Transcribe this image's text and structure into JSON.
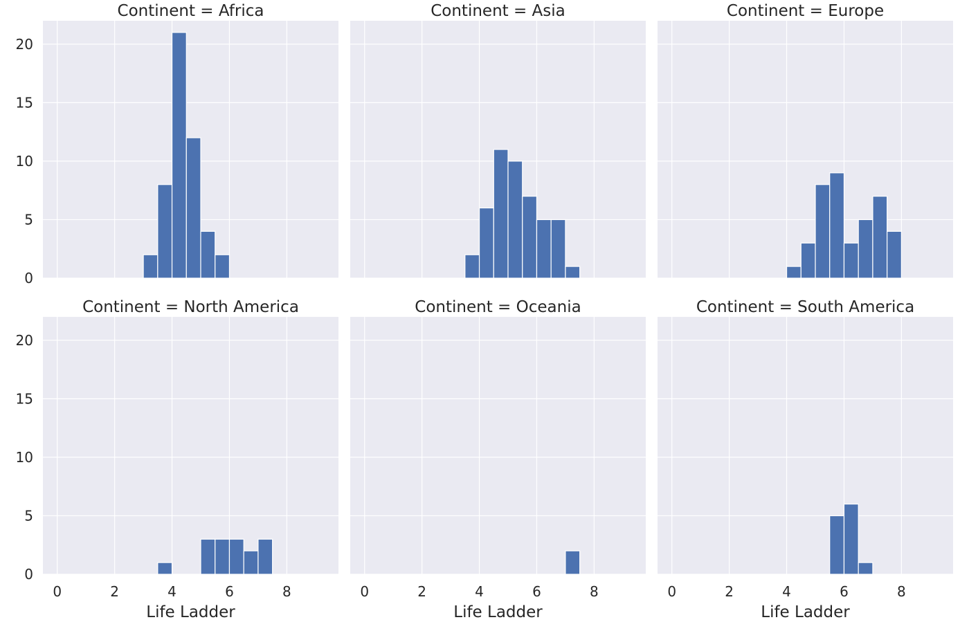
{
  "chart_data": {
    "type": "bar",
    "layout": "facet-grid-2x3",
    "facet_variable": "Continent",
    "xlabel": "Life Ladder",
    "ylabel": "",
    "xlim": [
      -0.5,
      9.8
    ],
    "ylim": [
      0,
      22
    ],
    "xticks": [
      0,
      2,
      4,
      6,
      8
    ],
    "yticks": [
      0,
      5,
      10,
      15,
      20
    ],
    "bin_width": 0.5,
    "grid": true,
    "colors": {
      "bar": "#4c72b0",
      "panel": "#eaeaf2",
      "grid": "#ffffff"
    },
    "facets": [
      {
        "title": "Continent = Africa",
        "bins": [
          {
            "x0": 3.0,
            "x1": 3.5,
            "count": 2
          },
          {
            "x0": 3.5,
            "x1": 4.0,
            "count": 8
          },
          {
            "x0": 4.0,
            "x1": 4.5,
            "count": 21
          },
          {
            "x0": 4.5,
            "x1": 5.0,
            "count": 12
          },
          {
            "x0": 5.0,
            "x1": 5.5,
            "count": 4
          },
          {
            "x0": 5.5,
            "x1": 6.0,
            "count": 2
          }
        ]
      },
      {
        "title": "Continent = Asia",
        "bins": [
          {
            "x0": 3.5,
            "x1": 4.0,
            "count": 2
          },
          {
            "x0": 4.0,
            "x1": 4.5,
            "count": 6
          },
          {
            "x0": 4.5,
            "x1": 5.0,
            "count": 11
          },
          {
            "x0": 5.0,
            "x1": 5.5,
            "count": 10
          },
          {
            "x0": 5.5,
            "x1": 6.0,
            "count": 7
          },
          {
            "x0": 6.0,
            "x1": 6.5,
            "count": 5
          },
          {
            "x0": 6.5,
            "x1": 7.0,
            "count": 5
          },
          {
            "x0": 7.0,
            "x1": 7.5,
            "count": 1
          }
        ]
      },
      {
        "title": "Continent = Europe",
        "bins": [
          {
            "x0": 4.0,
            "x1": 4.5,
            "count": 1
          },
          {
            "x0": 4.5,
            "x1": 5.0,
            "count": 3
          },
          {
            "x0": 5.0,
            "x1": 5.5,
            "count": 8
          },
          {
            "x0": 5.5,
            "x1": 6.0,
            "count": 9
          },
          {
            "x0": 6.0,
            "x1": 6.5,
            "count": 3
          },
          {
            "x0": 6.5,
            "x1": 7.0,
            "count": 5
          },
          {
            "x0": 7.0,
            "x1": 7.5,
            "count": 7
          },
          {
            "x0": 7.5,
            "x1": 8.0,
            "count": 4
          }
        ]
      },
      {
        "title": "Continent = North America",
        "bins": [
          {
            "x0": 3.5,
            "x1": 4.0,
            "count": 1
          },
          {
            "x0": 5.0,
            "x1": 5.5,
            "count": 3
          },
          {
            "x0": 5.5,
            "x1": 6.0,
            "count": 3
          },
          {
            "x0": 6.0,
            "x1": 6.5,
            "count": 3
          },
          {
            "x0": 6.5,
            "x1": 7.0,
            "count": 2
          },
          {
            "x0": 7.0,
            "x1": 7.5,
            "count": 3
          }
        ]
      },
      {
        "title": "Continent = Oceania",
        "bins": [
          {
            "x0": 7.0,
            "x1": 7.5,
            "count": 2
          }
        ]
      },
      {
        "title": "Continent = South America",
        "bins": [
          {
            "x0": 5.5,
            "x1": 6.0,
            "count": 5
          },
          {
            "x0": 6.0,
            "x1": 6.5,
            "count": 6
          },
          {
            "x0": 6.5,
            "x1": 7.0,
            "count": 1
          }
        ]
      }
    ]
  }
}
